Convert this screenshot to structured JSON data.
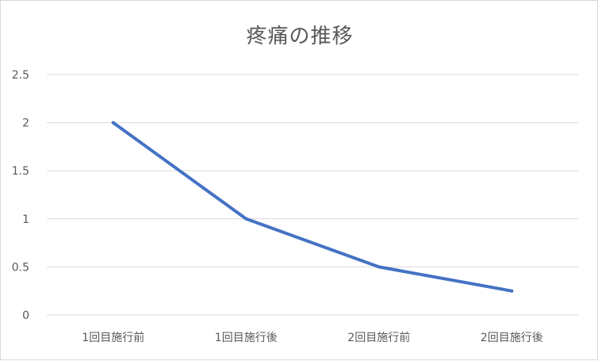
{
  "chart_data": {
    "type": "line",
    "title": "疼痛の推移",
    "categories": [
      "1回目施行前",
      "1回目施行後",
      "2回目施行前",
      "2回目施行後"
    ],
    "series": [
      {
        "values": [
          2,
          1,
          0.5,
          0.25
        ]
      }
    ],
    "yticks": [
      "0",
      "0.5",
      "1",
      "1.5",
      "2",
      "2.5"
    ],
    "ylim": [
      0,
      2.5
    ],
    "grid": true,
    "line_color": "#4472C4",
    "grid_color": "#d9d9d9",
    "axis_label_color": "#595959"
  }
}
